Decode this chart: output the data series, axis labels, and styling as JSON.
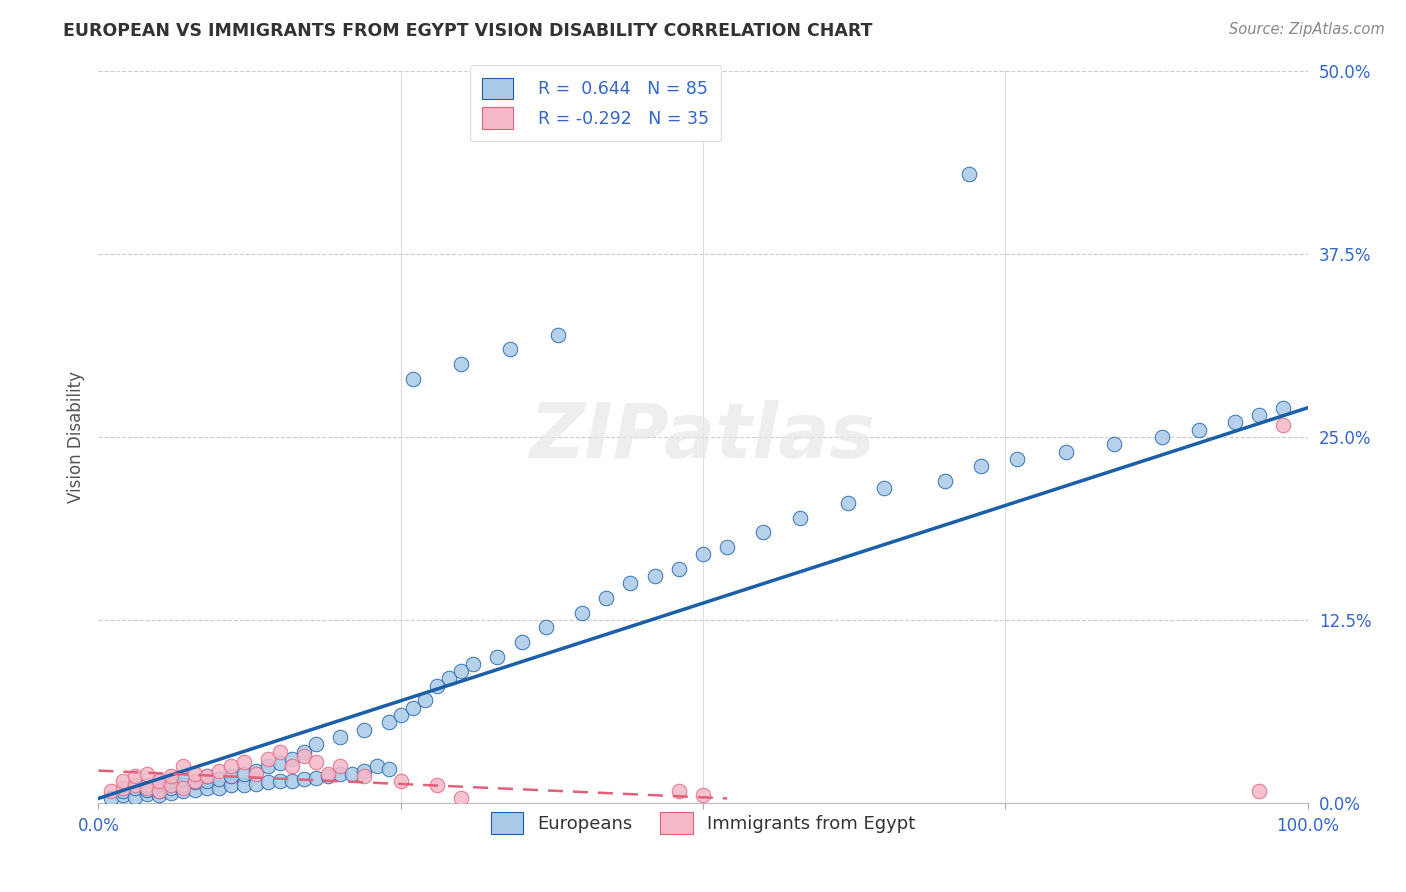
{
  "title": "EUROPEAN VS IMMIGRANTS FROM EGYPT VISION DISABILITY CORRELATION CHART",
  "source": "Source: ZipAtlas.com",
  "ylabel": "Vision Disability",
  "xlabel": "",
  "xlim": [
    0.0,
    1.0
  ],
  "ylim": [
    0.0,
    0.5
  ],
  "ytick_vals": [
    0.0,
    0.125,
    0.25,
    0.375,
    0.5
  ],
  "ytick_labels": [
    "0.0%",
    "12.5%",
    "25.0%",
    "37.5%",
    "50.0%"
  ],
  "xtick_vals": [
    0.0,
    0.25,
    0.5,
    0.75,
    1.0
  ],
  "xtick_labels": [
    "0.0%",
    "",
    "",
    "",
    "100.0%"
  ],
  "european_color": "#aac9e8",
  "egypt_color": "#f5b8c8",
  "trendline_european_color": "#1a5fa8",
  "trendline_egypt_color": "#e0607a",
  "legend_R_european": "R =  0.644",
  "legend_N_european": "N = 85",
  "legend_R_egypt": "R = -0.292",
  "legend_N_egypt": "N = 35",
  "background_color": "#ffffff",
  "watermark": "ZIPatlas",
  "europeans_x": [
    0.01,
    0.02,
    0.02,
    0.03,
    0.03,
    0.04,
    0.04,
    0.04,
    0.05,
    0.05,
    0.05,
    0.06,
    0.06,
    0.06,
    0.07,
    0.07,
    0.07,
    0.08,
    0.08,
    0.09,
    0.09,
    0.09,
    0.1,
    0.1,
    0.11,
    0.11,
    0.12,
    0.12,
    0.13,
    0.13,
    0.14,
    0.14,
    0.15,
    0.15,
    0.16,
    0.16,
    0.17,
    0.17,
    0.18,
    0.18,
    0.19,
    0.2,
    0.2,
    0.21,
    0.22,
    0.22,
    0.23,
    0.24,
    0.24,
    0.25,
    0.26,
    0.27,
    0.28,
    0.29,
    0.3,
    0.31,
    0.33,
    0.35,
    0.37,
    0.4,
    0.42,
    0.44,
    0.46,
    0.48,
    0.5,
    0.52,
    0.55,
    0.58,
    0.62,
    0.65,
    0.7,
    0.73,
    0.76,
    0.8,
    0.84,
    0.88,
    0.91,
    0.94,
    0.96,
    0.98,
    0.26,
    0.3,
    0.34,
    0.38,
    0.72
  ],
  "europeans_y": [
    0.003,
    0.005,
    0.008,
    0.004,
    0.01,
    0.006,
    0.009,
    0.012,
    0.005,
    0.008,
    0.013,
    0.007,
    0.01,
    0.015,
    0.008,
    0.012,
    0.016,
    0.009,
    0.014,
    0.01,
    0.015,
    0.018,
    0.01,
    0.016,
    0.012,
    0.018,
    0.012,
    0.02,
    0.013,
    0.022,
    0.014,
    0.025,
    0.015,
    0.027,
    0.015,
    0.03,
    0.016,
    0.035,
    0.017,
    0.04,
    0.018,
    0.02,
    0.045,
    0.02,
    0.022,
    0.05,
    0.025,
    0.023,
    0.055,
    0.06,
    0.065,
    0.07,
    0.08,
    0.085,
    0.09,
    0.095,
    0.1,
    0.11,
    0.12,
    0.13,
    0.14,
    0.15,
    0.155,
    0.16,
    0.17,
    0.175,
    0.185,
    0.195,
    0.205,
    0.215,
    0.22,
    0.23,
    0.235,
    0.24,
    0.245,
    0.25,
    0.255,
    0.26,
    0.265,
    0.27,
    0.29,
    0.3,
    0.31,
    0.32,
    0.43
  ],
  "egypt_x": [
    0.01,
    0.02,
    0.02,
    0.03,
    0.03,
    0.04,
    0.04,
    0.05,
    0.05,
    0.06,
    0.06,
    0.07,
    0.07,
    0.08,
    0.08,
    0.09,
    0.1,
    0.11,
    0.12,
    0.13,
    0.14,
    0.15,
    0.16,
    0.17,
    0.18,
    0.19,
    0.2,
    0.22,
    0.25,
    0.28,
    0.3,
    0.48,
    0.5,
    0.96,
    0.98
  ],
  "egypt_y": [
    0.008,
    0.01,
    0.015,
    0.012,
    0.018,
    0.01,
    0.02,
    0.008,
    0.015,
    0.012,
    0.018,
    0.01,
    0.025,
    0.015,
    0.02,
    0.018,
    0.022,
    0.025,
    0.028,
    0.02,
    0.03,
    0.035,
    0.025,
    0.032,
    0.028,
    0.02,
    0.025,
    0.018,
    0.015,
    0.012,
    0.003,
    0.008,
    0.005,
    0.008,
    0.258
  ],
  "trendline_euro_x0": 0.0,
  "trendline_euro_y0": 0.003,
  "trendline_euro_x1": 1.0,
  "trendline_euro_y1": 0.27,
  "trendline_egypt_x0": 0.0,
  "trendline_egypt_y0": 0.022,
  "trendline_egypt_x1": 0.52,
  "trendline_egypt_y1": 0.003
}
